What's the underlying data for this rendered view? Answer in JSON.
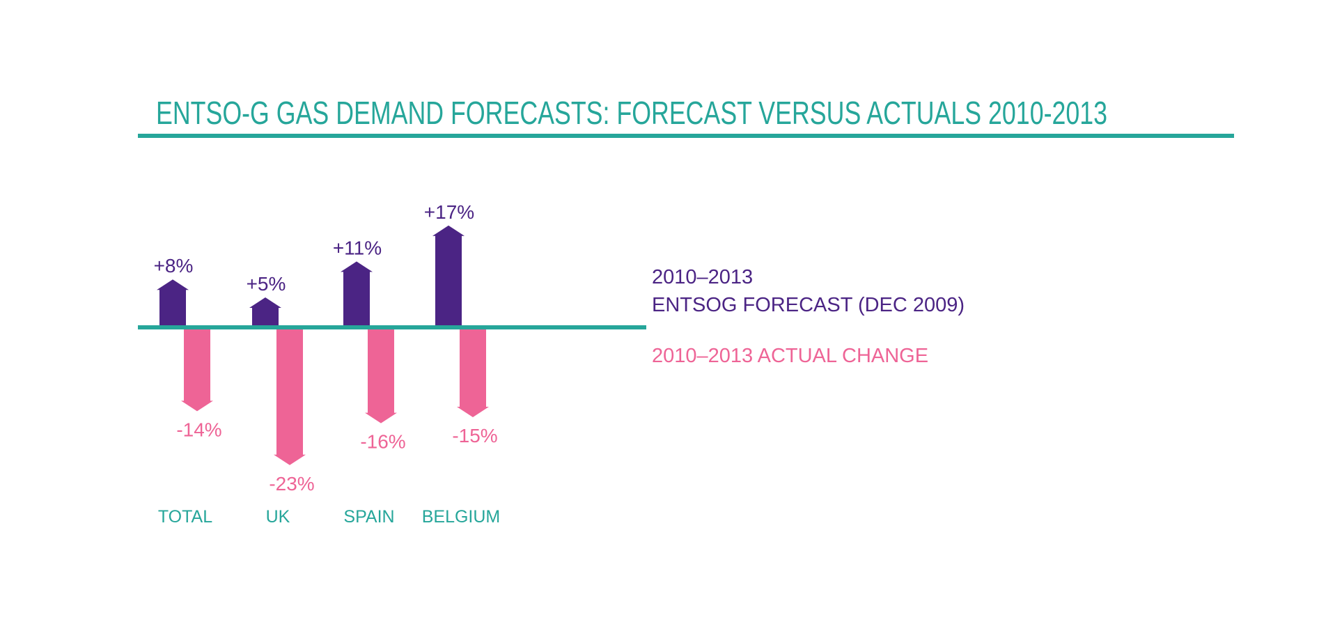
{
  "colors": {
    "accent": "#26a69a",
    "forecast": "#4b2484",
    "actual": "#ee6496",
    "background": "#ffffff"
  },
  "chart_data": {
    "type": "bar",
    "title": "ENTSO-G GAS DEMAND FORECASTS: FORECAST VERSUS ACTUALS 2010-2013",
    "categories": [
      "TOTAL",
      "UK",
      "SPAIN",
      "BELGIUM"
    ],
    "series": [
      {
        "name": "2010–2013 ENTSOG FORECAST (DEC 2009)",
        "name_lines": [
          "2010–2013",
          "ENTSOG FORECAST (DEC 2009)"
        ],
        "values": [
          8,
          5,
          11,
          17
        ],
        "labels": [
          "+8%",
          "+5%",
          "+11%",
          "+17%"
        ],
        "color": "#4b2484"
      },
      {
        "name": "2010–2013 ACTUAL CHANGE",
        "name_lines": [
          "2010–2013 ACTUAL CHANGE"
        ],
        "values": [
          -14,
          -23,
          -16,
          -15
        ],
        "labels": [
          "-14%",
          "-23%",
          "-16%",
          "-15%"
        ],
        "color": "#ee6496"
      }
    ],
    "unit": "%",
    "legend_position": "right",
    "grid": false
  }
}
